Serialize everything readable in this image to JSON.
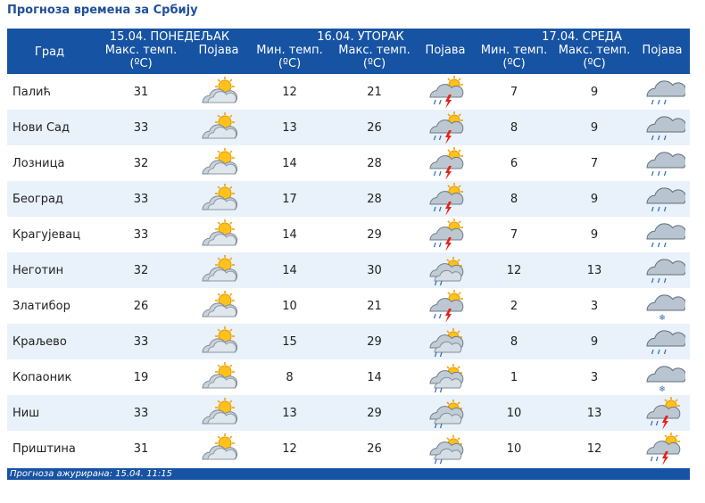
{
  "page": {
    "title": "Прогноза времена за Србију"
  },
  "header": {
    "city_label": "Град",
    "days": [
      {
        "date": "15.04. ПОНЕДЕЉАК"
      },
      {
        "date": "16.04. УТОРАК"
      },
      {
        "date": "17.04. СРЕДА"
      }
    ],
    "max_temp": "Макс. темп.",
    "min_temp": "Мин. темп.",
    "unit": "(ºC)",
    "phenomenon": "Појава"
  },
  "rows": [
    {
      "city": "Палић",
      "d1_max": "31",
      "d1_icon": "sun-cloud-icon",
      "d2_min": "12",
      "d2_max": "21",
      "d2_icon": "thunderstorm-icon",
      "d3_min": "7",
      "d3_max": "9",
      "d3_icon": "rain-icon"
    },
    {
      "city": "Нови Сад",
      "d1_max": "33",
      "d1_icon": "sun-cloud-icon",
      "d2_min": "13",
      "d2_max": "26",
      "d2_icon": "thunderstorm-icon",
      "d3_min": "8",
      "d3_max": "9",
      "d3_icon": "rain-icon"
    },
    {
      "city": "Лозница",
      "d1_max": "32",
      "d1_icon": "sun-cloud-icon",
      "d2_min": "14",
      "d2_max": "28",
      "d2_icon": "thunderstorm-icon",
      "d3_min": "6",
      "d3_max": "7",
      "d3_icon": "rain-icon"
    },
    {
      "city": "Београд",
      "d1_max": "33",
      "d1_icon": "sun-cloud-icon",
      "d2_min": "17",
      "d2_max": "28",
      "d2_icon": "thunderstorm-icon",
      "d3_min": "8",
      "d3_max": "9",
      "d3_icon": "rain-icon"
    },
    {
      "city": "Крагујевац",
      "d1_max": "33",
      "d1_icon": "sun-cloud-icon",
      "d2_min": "14",
      "d2_max": "29",
      "d2_icon": "thunderstorm-icon",
      "d3_min": "7",
      "d3_max": "9",
      "d3_icon": "rain-icon"
    },
    {
      "city": "Неготин",
      "d1_max": "32",
      "d1_icon": "sun-cloud-icon",
      "d2_min": "14",
      "d2_max": "30",
      "d2_icon": "cloud-shower-icon",
      "d3_min": "12",
      "d3_max": "13",
      "d3_icon": "rain-icon"
    },
    {
      "city": "Златибор",
      "d1_max": "26",
      "d1_icon": "sun-cloud-icon",
      "d2_min": "10",
      "d2_max": "21",
      "d2_icon": "thunderstorm-icon",
      "d3_min": "2",
      "d3_max": "3",
      "d3_icon": "snow-icon"
    },
    {
      "city": "Краљево",
      "d1_max": "33",
      "d1_icon": "sun-cloud-icon",
      "d2_min": "15",
      "d2_max": "29",
      "d2_icon": "cloud-shower-icon",
      "d3_min": "8",
      "d3_max": "9",
      "d3_icon": "rain-icon"
    },
    {
      "city": "Копаоник",
      "d1_max": "19",
      "d1_icon": "sun-cloud-icon",
      "d2_min": "8",
      "d2_max": "14",
      "d2_icon": "cloud-shower-icon",
      "d3_min": "1",
      "d3_max": "3",
      "d3_icon": "snow-icon"
    },
    {
      "city": "Ниш",
      "d1_max": "33",
      "d1_icon": "sun-cloud-icon",
      "d2_min": "13",
      "d2_max": "29",
      "d2_icon": "cloud-shower-icon",
      "d3_min": "10",
      "d3_max": "13",
      "d3_icon": "thunderstorm-icon"
    },
    {
      "city": "Приштина",
      "d1_max": "31",
      "d1_icon": "sun-cloud-icon",
      "d2_min": "12",
      "d2_max": "26",
      "d2_icon": "cloud-shower-icon",
      "d3_min": "10",
      "d3_max": "12",
      "d3_icon": "thunderstorm-icon"
    }
  ],
  "footer": {
    "text": "Прогноза ажурирана:  15.04.  11:15"
  }
}
